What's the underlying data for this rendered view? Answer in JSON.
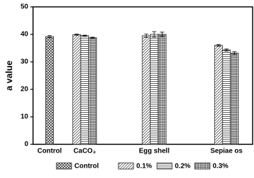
{
  "chart_data": {
    "type": "bar",
    "y_label": "a value",
    "categories": [
      "Control",
      "CaCO₃",
      "Egg shell",
      "Sepiae os"
    ],
    "series": [
      {
        "name": "Control",
        "pattern": "crosshatch",
        "values": [
          39.2,
          null,
          null,
          null
        ],
        "errors": [
          0.4,
          null,
          null,
          null
        ]
      },
      {
        "name": "0.1%",
        "pattern": "diagonal",
        "values": [
          null,
          39.9,
          39.5,
          36.0
        ],
        "errors": [
          null,
          0.2,
          0.6,
          0.3
        ]
      },
      {
        "name": "0.2%",
        "pattern": "horizontal",
        "values": [
          null,
          39.5,
          40.0,
          34.3
        ],
        "errors": [
          null,
          0.2,
          1.0,
          0.4
        ]
      },
      {
        "name": "0.3%",
        "pattern": "grid",
        "values": [
          null,
          38.8,
          40.0,
          33.2
        ],
        "errors": [
          null,
          0.2,
          0.8,
          0.5
        ]
      }
    ],
    "ylim": [
      0,
      50
    ],
    "yticks": [
      0,
      10,
      20,
      30,
      40,
      50
    ]
  }
}
